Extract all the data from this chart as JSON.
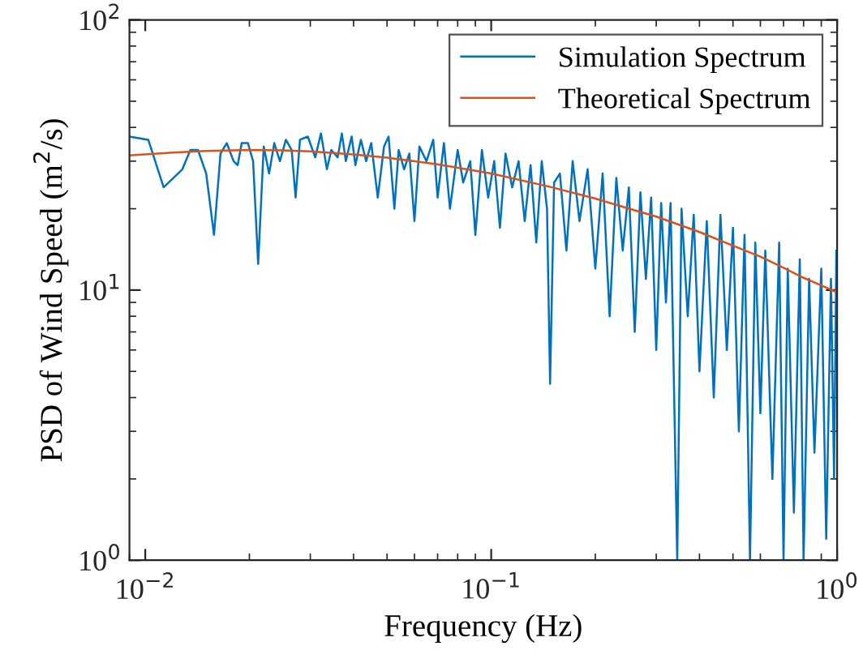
{
  "chart_data": {
    "type": "line",
    "xlabel": "Frequency (Hz)",
    "ylabel": "PSD of Wind Speed (m$^{2}$/s)",
    "log": "xy",
    "grid": false,
    "legend": "top right",
    "xlim": [
      0.009,
      1
    ],
    "ylim": [
      1,
      100
    ],
    "xticks": [
      {
        "value": 0.01,
        "label": "10$^{−2}$"
      },
      {
        "value": 0.1,
        "label": "10$^{−1}$"
      },
      {
        "value": 1,
        "label": "10$^{0}$"
      }
    ],
    "yticks": [
      {
        "value": 1,
        "label": "10$^{0}$"
      },
      {
        "value": 10,
        "label": "10$^{1}$"
      },
      {
        "value": 100,
        "label": "10$^{2}$"
      }
    ],
    "series": [
      {
        "name": "Simulation Spectrum",
        "color": "#0072bd",
        "x": [
          0.009,
          0.0102,
          0.0113,
          0.0128,
          0.0135,
          0.0142,
          0.015,
          0.0158,
          0.0165,
          0.0172,
          0.018,
          0.0185,
          0.019,
          0.0198,
          0.0205,
          0.0212,
          0.022,
          0.0228,
          0.0236,
          0.0245,
          0.0255,
          0.0265,
          0.0272,
          0.028,
          0.0295,
          0.031,
          0.0322,
          0.0335,
          0.0345,
          0.036,
          0.037,
          0.038,
          0.0395,
          0.0405,
          0.042,
          0.0435,
          0.045,
          0.047,
          0.049,
          0.0505,
          0.0525,
          0.054,
          0.056,
          0.058,
          0.06,
          0.062,
          0.065,
          0.068,
          0.07,
          0.073,
          0.076,
          0.08,
          0.083,
          0.087,
          0.09,
          0.094,
          0.098,
          0.102,
          0.106,
          0.11,
          0.115,
          0.12,
          0.125,
          0.13,
          0.135,
          0.14,
          0.145,
          0.148,
          0.152,
          0.158,
          0.165,
          0.172,
          0.18,
          0.19,
          0.2,
          0.21,
          0.22,
          0.23,
          0.24,
          0.25,
          0.26,
          0.27,
          0.28,
          0.29,
          0.3,
          0.31,
          0.32,
          0.33,
          0.345,
          0.355,
          0.37,
          0.385,
          0.4,
          0.42,
          0.44,
          0.46,
          0.48,
          0.5,
          0.52,
          0.54,
          0.56,
          0.58,
          0.6,
          0.62,
          0.65,
          0.68,
          0.7,
          0.72,
          0.75,
          0.78,
          0.8,
          0.83,
          0.86,
          0.9,
          0.93,
          0.96,
          0.98,
          0.995
        ],
        "values": [
          37,
          36,
          24,
          28,
          33,
          33,
          27,
          16,
          32,
          35,
          30,
          29,
          35,
          35,
          30,
          12.5,
          34,
          27,
          35,
          30,
          36,
          33,
          22,
          36,
          37,
          31,
          38,
          28,
          33,
          31,
          38,
          30,
          37,
          29,
          36,
          30,
          35,
          22,
          34,
          37,
          20,
          33,
          28,
          32,
          18,
          34,
          30,
          36,
          22,
          35,
          20,
          33,
          25,
          30,
          16,
          33,
          22,
          30,
          17,
          32,
          24,
          30,
          18,
          29,
          15,
          30,
          20,
          4.5,
          25,
          27,
          14,
          30,
          18,
          28,
          12,
          27,
          8,
          26,
          14,
          24,
          7,
          23,
          11,
          22,
          6,
          21,
          9,
          21,
          1.0,
          20,
          8,
          19,
          5,
          18,
          4,
          19,
          6,
          17,
          3,
          16,
          1.0,
          15,
          3.5,
          14,
          2,
          15,
          1.0,
          12,
          1.5,
          13,
          1.0,
          11,
          2.5,
          12,
          1.2,
          11,
          2,
          14
        ]
      },
      {
        "name": "Theoretical Spectrum",
        "color": "#d95319",
        "x": [
          0.009,
          0.012,
          0.015,
          0.02,
          0.025,
          0.03,
          0.04,
          0.05,
          0.07,
          0.1,
          0.15,
          0.2,
          0.3,
          0.4,
          0.5,
          0.6,
          0.7,
          0.8,
          0.9,
          1.0
        ],
        "values": [
          31.5,
          32.3,
          32.7,
          33,
          32.9,
          32.6,
          31.8,
          30.9,
          29.2,
          27,
          24,
          21.8,
          18.7,
          16.4,
          14.6,
          13.3,
          12.1,
          11.1,
          10.4,
          9.8
        ]
      }
    ]
  }
}
